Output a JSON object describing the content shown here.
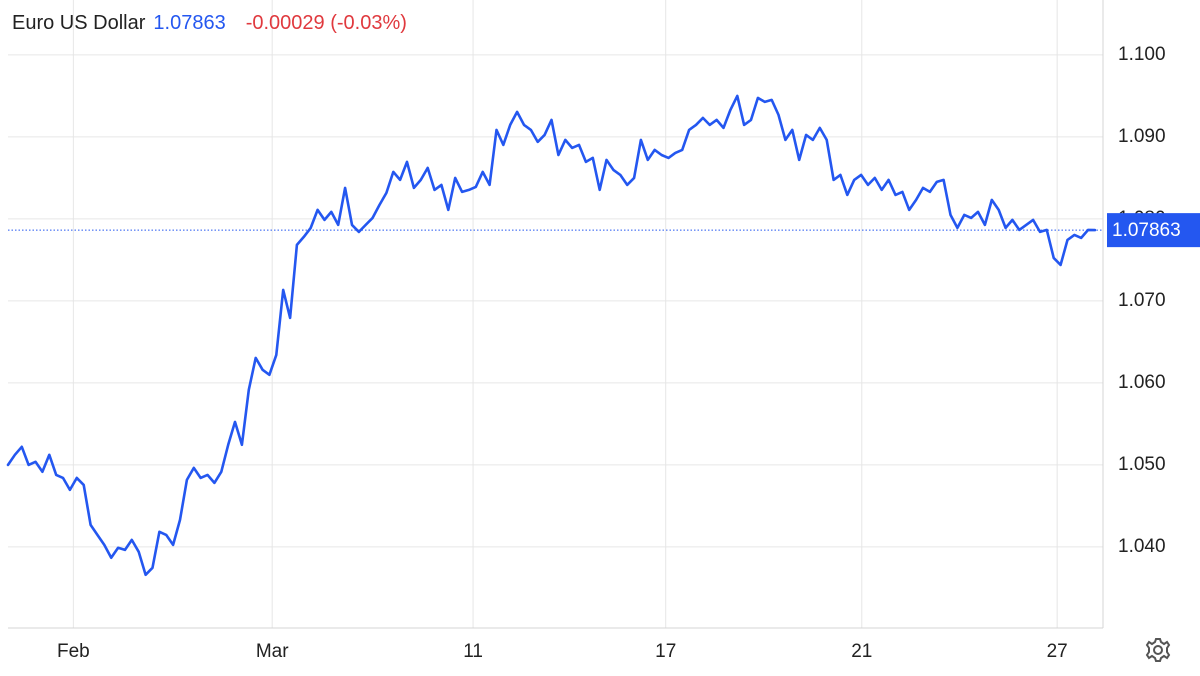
{
  "chart_data": {
    "type": "line",
    "title": "Euro US Dollar",
    "price": 1.07863,
    "change": "-0.00029 (-0.03%)",
    "color": "#2457f0",
    "price_color": "#2457f0",
    "change_color": "#e0393e",
    "grid": true,
    "xlim": [
      0,
      158
    ],
    "xticks": [
      {
        "value": 9.5,
        "label": "Feb"
      },
      {
        "value": 38.4,
        "label": "Mar"
      },
      {
        "value": 67.6,
        "label": "11"
      },
      {
        "value": 95.6,
        "label": "17"
      },
      {
        "value": 124.1,
        "label": "21"
      },
      {
        "value": 152.5,
        "label": "27"
      }
    ],
    "ylim": [
      1.0301,
      1.1067
    ],
    "yticks": [
      {
        "value": 1.04,
        "label": "1.040"
      },
      {
        "value": 1.05,
        "label": "1.050"
      },
      {
        "value": 1.06,
        "label": "1.060"
      },
      {
        "value": 1.07,
        "label": "1.070"
      },
      {
        "value": 1.08,
        "label": "1.080"
      },
      {
        "value": 1.09,
        "label": "1.090"
      },
      {
        "value": 1.1,
        "label": "1.100"
      }
    ],
    "values": [
      1.05,
      1.05122,
      1.0522,
      1.05,
      1.05037,
      1.04915,
      1.05122,
      1.04878,
      1.04841,
      1.04695,
      1.04841,
      1.04756,
      1.04268,
      1.04146,
      1.04024,
      1.03866,
      1.03988,
      1.03963,
      1.04085,
      1.03939,
      1.03659,
      1.03744,
      1.04183,
      1.04146,
      1.04024,
      1.04329,
      1.04817,
      1.04963,
      1.04841,
      1.04878,
      1.0478,
      1.04915,
      1.05244,
      1.05524,
      1.05244,
      1.05915,
      1.06305,
      1.06159,
      1.06098,
      1.06341,
      1.07134,
      1.06793,
      1.07683,
      1.0778,
      1.0789,
      1.0811,
      1.07988,
      1.08085,
      1.07927,
      1.08378,
      1.07927,
      1.07841,
      1.07927,
      1.08012,
      1.08171,
      1.08317,
      1.08573,
      1.08476,
      1.08695,
      1.08378,
      1.08476,
      1.08622,
      1.08354,
      1.08415,
      1.0811,
      1.085,
      1.08329,
      1.08354,
      1.0839,
      1.08573,
      1.08415,
      1.09085,
      1.08902,
      1.09146,
      1.09305,
      1.09146,
      1.09085,
      1.08939,
      1.09024,
      1.09207,
      1.0878,
      1.08963,
      1.08866,
      1.08902,
      1.08695,
      1.08744,
      1.08354,
      1.0872,
      1.08598,
      1.08537,
      1.08415,
      1.085,
      1.08963,
      1.0872,
      1.08841,
      1.0878,
      1.08744,
      1.08805,
      1.08841,
      1.09085,
      1.09146,
      1.09232,
      1.09146,
      1.09207,
      1.0911,
      1.09329,
      1.095,
      1.09146,
      1.09207,
      1.09476,
      1.09427,
      1.09451,
      1.09268,
      1.08963,
      1.09085,
      1.0872,
      1.09024,
      1.08963,
      1.0911,
      1.08963,
      1.08476,
      1.08537,
      1.08293,
      1.08476,
      1.08537,
      1.08415,
      1.085,
      1.08354,
      1.08476,
      1.08293,
      1.08329,
      1.0811,
      1.08232,
      1.08378,
      1.08329,
      1.08451,
      1.08476,
      1.08049,
      1.0789,
      1.08049,
      1.08012,
      1.08085,
      1.07927,
      1.08232,
      1.0811,
      1.0789,
      1.07988,
      1.07866,
      1.07927,
      1.07988,
      1.07841,
      1.07866,
      1.07524,
      1.07439,
      1.07744,
      1.07805,
      1.07768,
      1.07866,
      1.07863
    ]
  }
}
